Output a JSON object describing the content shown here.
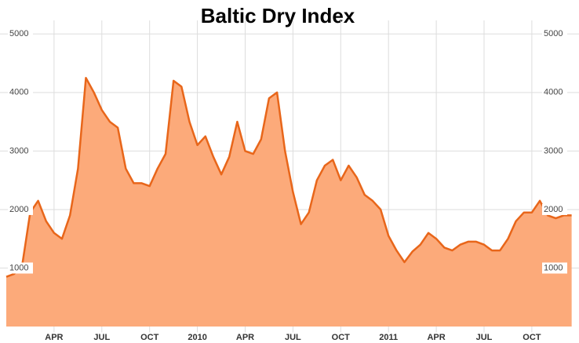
{
  "chart_data": {
    "type": "area",
    "title": "Baltic Dry Index",
    "categories": [
      null,
      null,
      null,
      null,
      null,
      null,
      "APR",
      null,
      null,
      null,
      null,
      null,
      "JUL",
      null,
      null,
      null,
      null,
      null,
      "OCT",
      null,
      null,
      null,
      null,
      null,
      "2010",
      null,
      null,
      null,
      null,
      null,
      "APR",
      null,
      null,
      null,
      null,
      null,
      "JUL",
      null,
      null,
      null,
      null,
      null,
      "OCT",
      null,
      null,
      null,
      null,
      null,
      "2011",
      null,
      null,
      null,
      null,
      null,
      "APR",
      null,
      null,
      null,
      null,
      null,
      "JUL",
      null,
      null,
      null,
      null,
      null,
      "OCT",
      null,
      null,
      null,
      null,
      null
    ],
    "values": [
      850,
      900,
      1050,
      1950,
      2150,
      1800,
      1600,
      1500,
      1900,
      2700,
      4250,
      4000,
      3700,
      3500,
      3400,
      2700,
      2450,
      2450,
      2400,
      2700,
      2950,
      4200,
      4100,
      3500,
      3100,
      3250,
      2900,
      2600,
      2900,
      3500,
      3000,
      2950,
      3200,
      3900,
      4000,
      3000,
      2300,
      1750,
      1950,
      2500,
      2750,
      2850,
      2500,
      2750,
      2550,
      2250,
      2150,
      2000,
      1550,
      1300,
      1100,
      1280,
      1400,
      1600,
      1500,
      1350,
      1300,
      1400,
      1450,
      1450,
      1400,
      1300,
      1300,
      1500,
      1800,
      1950,
      1950,
      2150,
      1900,
      1850,
      1900,
      1900
    ],
    "color": "#fcaa7a",
    "line_color": "#e8661a",
    "ylim": [
      -100,
      5500
    ],
    "yticks": [
      1000,
      2000,
      3000,
      4000,
      5000
    ],
    "grid": true
  }
}
